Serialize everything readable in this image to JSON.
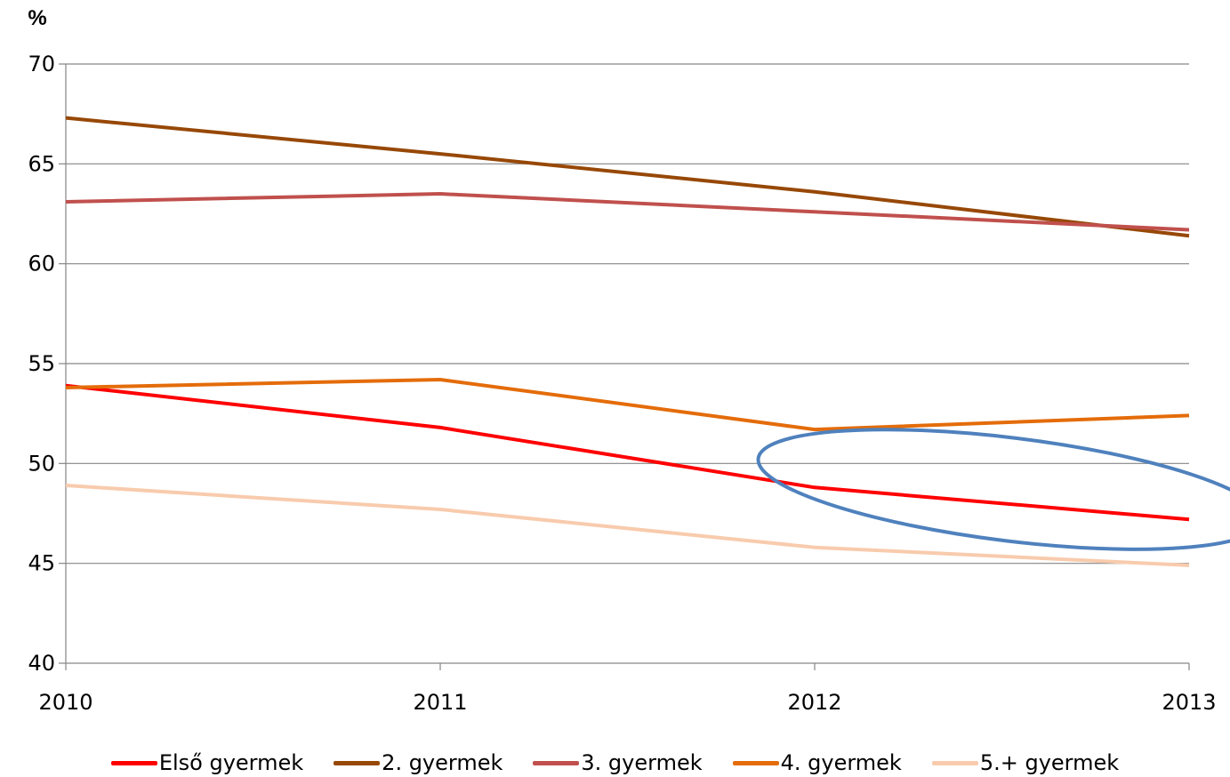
{
  "chart_data": {
    "type": "line",
    "ylabel": "%",
    "ylim": [
      40,
      70
    ],
    "yticks": [
      40,
      45,
      50,
      55,
      60,
      65,
      70
    ],
    "x": [
      "2010",
      "2011",
      "2012",
      "2013"
    ],
    "grid": true,
    "legend_position": "bottom",
    "series": [
      {
        "name": "Első gyermek",
        "color": "#ff0000",
        "values": [
          53.9,
          51.8,
          48.8,
          47.2
        ]
      },
      {
        "name": "2. gyermek",
        "color": "#974806",
        "values": [
          67.3,
          65.5,
          63.6,
          61.4
        ]
      },
      {
        "name": "3. gyermek",
        "color": "#c0504d",
        "values": [
          63.1,
          63.5,
          62.6,
          61.7
        ]
      },
      {
        "name": "4. gyermek",
        "color": "#e46c0a",
        "values": [
          53.8,
          54.2,
          51.7,
          52.4
        ]
      },
      {
        "name": "5.+ gyermek",
        "color": "#f8cbad",
        "values": [
          48.9,
          47.7,
          45.8,
          44.9
        ]
      }
    ],
    "highlight": {
      "shape": "ellipse",
      "color": "#4f81bd"
    }
  }
}
